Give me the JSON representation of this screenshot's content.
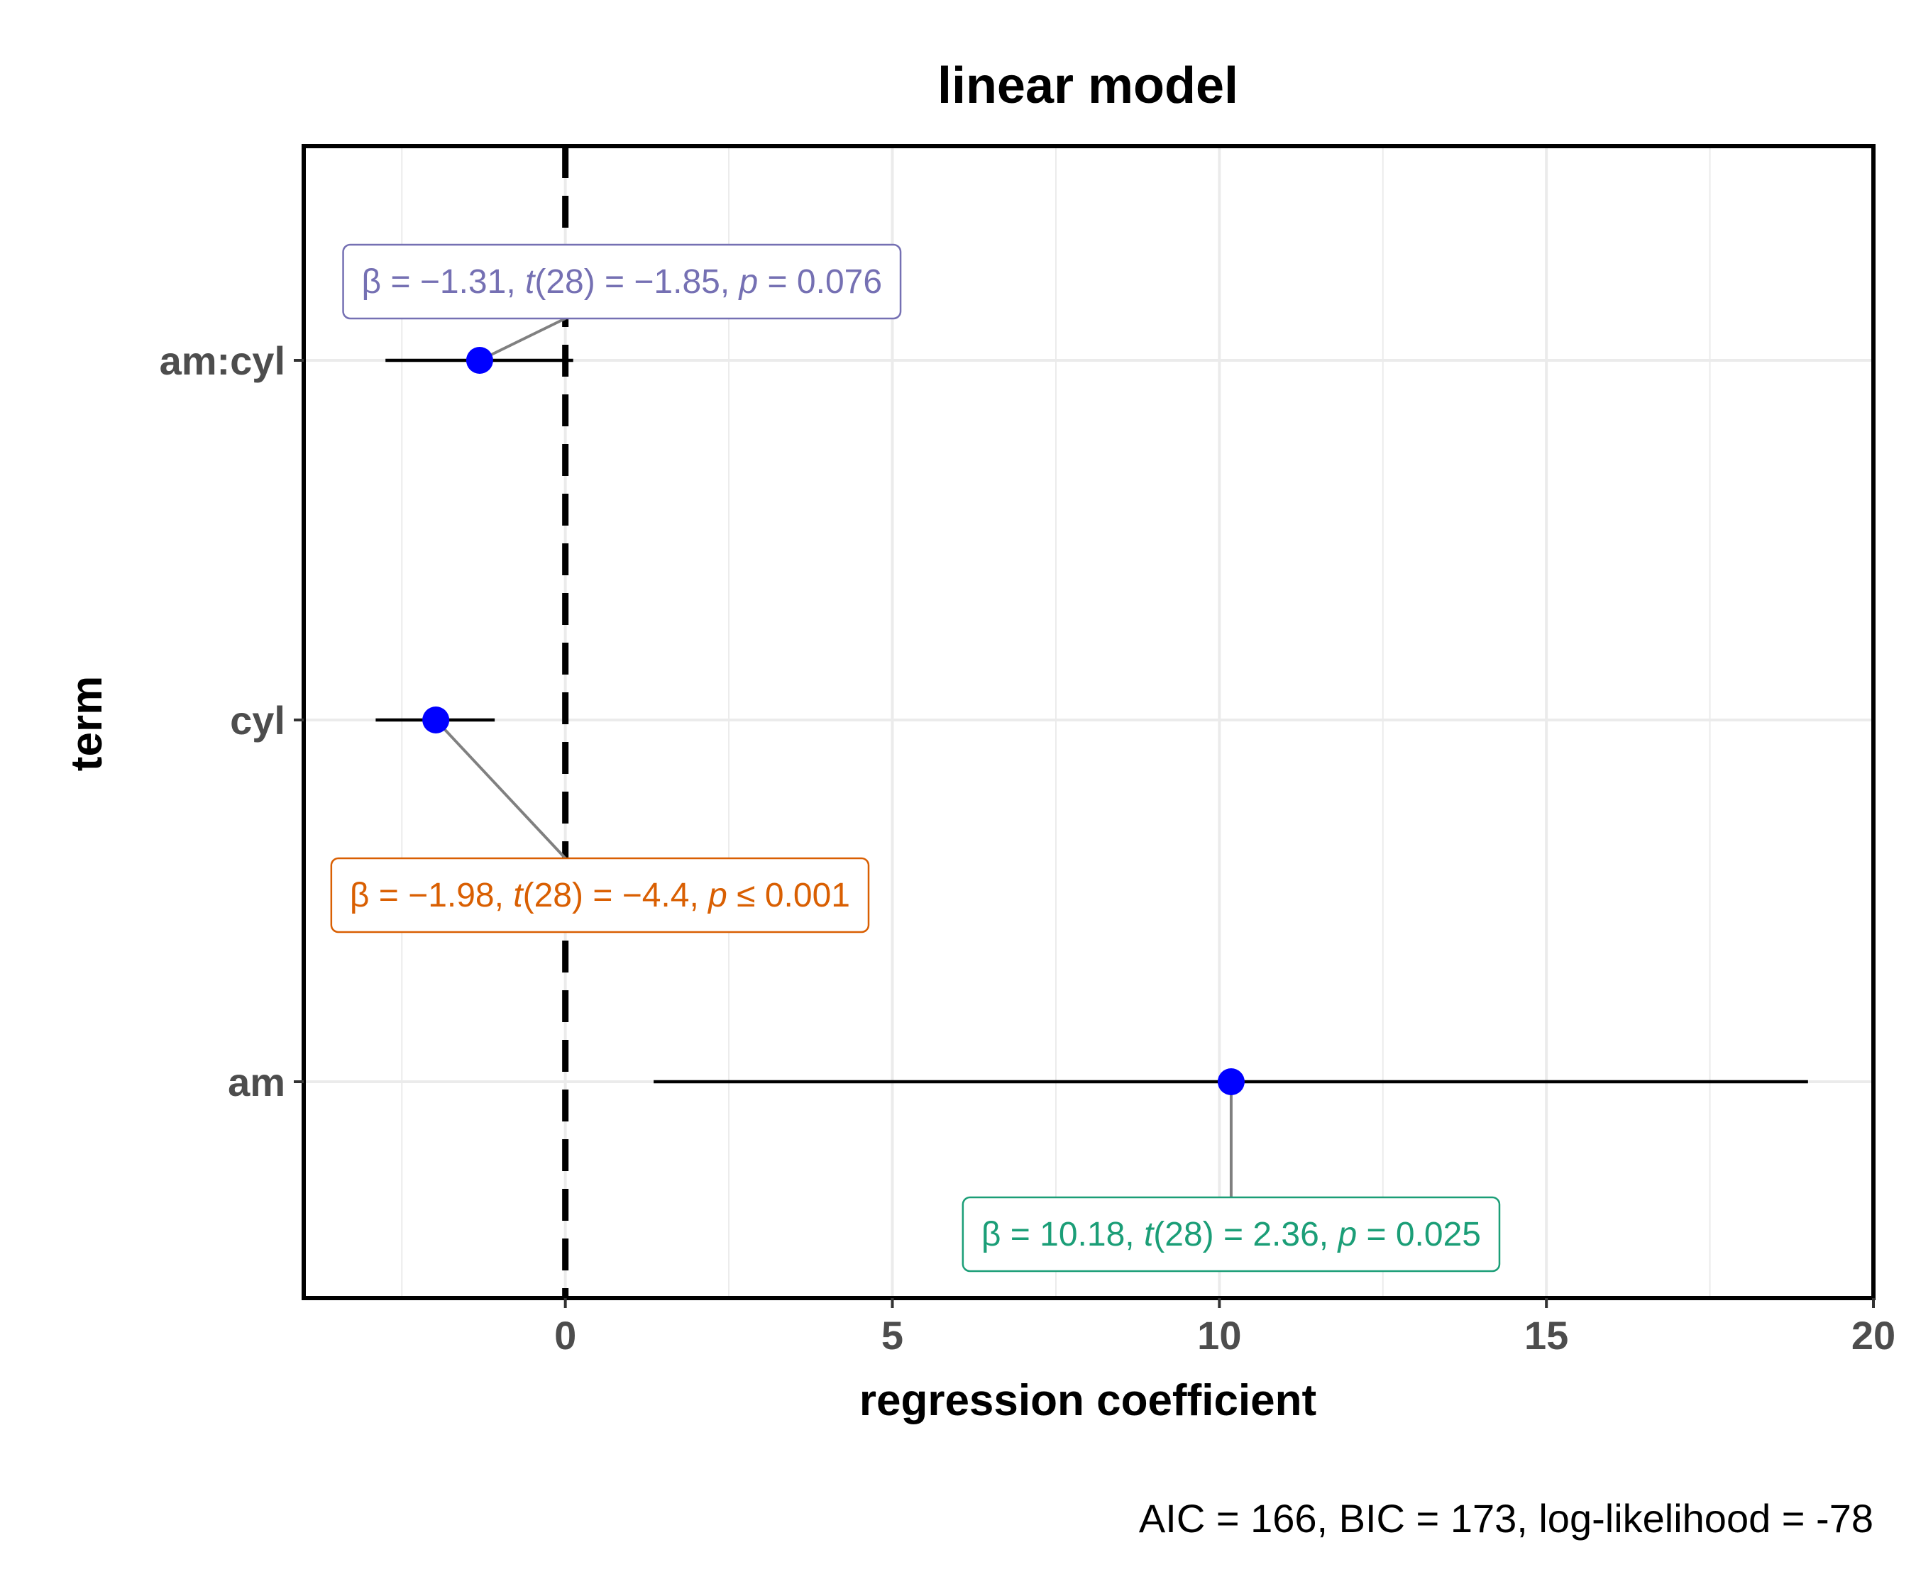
{
  "chart_data": {
    "type": "forest",
    "title": "linear model",
    "xlabel": "regression coefficient",
    "ylabel": "term",
    "caption": "AIC = 166, BIC = 173, log-likelihood = -78",
    "xlim": [
      -4,
      20
    ],
    "xticks": [
      0,
      5,
      10,
      15,
      20
    ],
    "x_tick_labels": [
      "0",
      "5",
      "10",
      "15",
      "20"
    ],
    "reference_line": 0,
    "grid": true,
    "point_color": "#0000ff",
    "terms": [
      {
        "term": "am:cyl",
        "estimate": -1.31,
        "conf_low": -2.75,
        "conf_high": 0.12,
        "label_color": "#7570b3",
        "label_parts": [
          "β = −1.31,  ",
          "t",
          "(28) = −1.85,  ",
          "p",
          " = 0.076"
        ]
      },
      {
        "term": "cyl",
        "estimate": -1.98,
        "conf_low": -2.9,
        "conf_high": -1.08,
        "label_color": "#d95f02",
        "label_parts": [
          "β = −1.98,  ",
          "t",
          "(28) = −4.4,  ",
          "p",
          " ≤ 0.001"
        ]
      },
      {
        "term": "am",
        "estimate": 10.18,
        "conf_low": 1.35,
        "conf_high": 19.0,
        "label_color": "#1b9e77",
        "label_parts": [
          "β = 10.18,  ",
          "t",
          "(28) = 2.36,  ",
          "p",
          " = 0.025"
        ]
      }
    ]
  }
}
